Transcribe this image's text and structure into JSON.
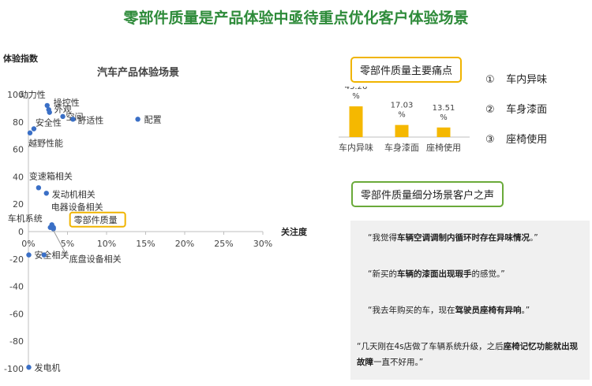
{
  "title": "零部件质量是产品体验中亟待重点优化客户体验场景",
  "chart_data": [
    {
      "type": "scatter",
      "title": "汽车产品体验场景",
      "xlabel": "关注度",
      "ylabel": "体验指数",
      "xlim": [
        0,
        30
      ],
      "ylim": [
        -100,
        100
      ],
      "x_ticks": [
        "0%",
        "5%",
        "10%",
        "15%",
        "20%",
        "25%",
        "30%"
      ],
      "y_ticks": [
        "100",
        "80",
        "60",
        "40",
        "20",
        "0",
        "-20",
        "-40",
        "-60",
        "-80",
        "-100"
      ],
      "point_color": "#3a6fc6",
      "highlight_color": "#f0b400",
      "points": [
        {
          "label": "动力性",
          "x": 2.4,
          "y": 92
        },
        {
          "label": "操控性",
          "x": 2.6,
          "y": 89
        },
        {
          "label": "外观",
          "x": 2.7,
          "y": 87
        },
        {
          "label": "空间",
          "x": 4.4,
          "y": 84
        },
        {
          "label": "舒适性",
          "x": 5.7,
          "y": 82
        },
        {
          "label": "配置",
          "x": 14.0,
          "y": 82
        },
        {
          "label": "安全性",
          "x": 0.7,
          "y": 75
        },
        {
          "label": "越野性能",
          "x": 0.2,
          "y": 72
        },
        {
          "label": "变速箱相关",
          "x": 1.3,
          "y": 32
        },
        {
          "label": "发动机相关",
          "x": 2.3,
          "y": 28
        },
        {
          "label": "电器设备相关",
          "x": 3.0,
          "y": 5
        },
        {
          "label": "零部件质量",
          "x": 3.2,
          "y": 3,
          "highlight": true
        },
        {
          "label": "车机系统",
          "x": 2.8,
          "y": 3
        },
        {
          "label": "底盘设备相关",
          "x": 3.2,
          "y": 2
        },
        {
          "label": "安全相关",
          "x": 0.05,
          "y": -17
        },
        {
          "label": "",
          "x": 2.0,
          "y": -17
        },
        {
          "label": "发电机",
          "x": 0.05,
          "y": -99
        }
      ]
    },
    {
      "type": "bar",
      "categories": [
        "车内异味",
        "车身漆面",
        "座椅使用"
      ],
      "values": [
        43.26,
        17.03,
        13.51
      ],
      "value_labels": [
        "43.26 %",
        "17.03 %",
        "13.51 %"
      ],
      "bar_color": "#f5b800"
    }
  ],
  "pain_points": {
    "title": "零部件质量主要痛点",
    "items": [
      {
        "num": "①",
        "text": "车内异味"
      },
      {
        "num": "②",
        "text": "车身漆面"
      },
      {
        "num": "③",
        "text": "座椅使用"
      }
    ]
  },
  "voices": {
    "title": "零部件质量细分场景客户之声",
    "quotes": [
      {
        "pre": "“我觉得",
        "bold": "车辆空调调制内循环时存在异味情况",
        "post": "。”"
      },
      {
        "pre": "“新买的",
        "bold": "车辆的漆面出现瑕手",
        "post": "的感觉。”"
      },
      {
        "pre": "“我去年购买的车，现在",
        "bold": "驾驶员座椅有异响",
        "post": "。”"
      },
      {
        "pre": "“几天刚在4s店做了车辆系统升级，之后",
        "bold": "座椅记忆功能就出现故障",
        "post": "一直不好用。”"
      }
    ]
  }
}
